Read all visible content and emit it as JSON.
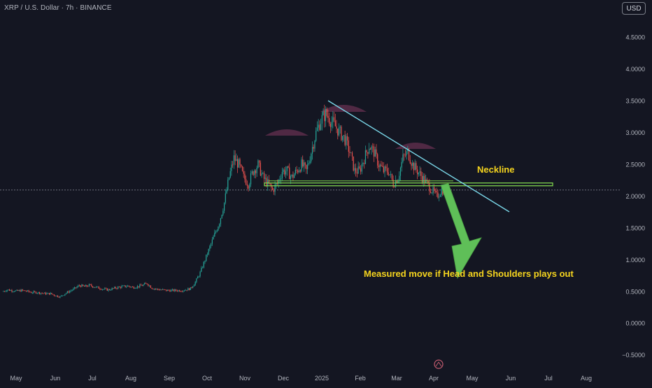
{
  "header": {
    "symbol_title": "XRP / U.S. Dollar · 7h · BINANCE",
    "currency_button": "USD"
  },
  "colors": {
    "background": "#141622",
    "up_candle": "#26a69a",
    "down_candle": "#ef5350",
    "axis_text": "#b2b5be",
    "neckline": "#7fd34e",
    "trendline": "#7ad7e8",
    "shoulder_arcs": "#5a2d4a",
    "measured_move_arrow": "#5fbf58",
    "annotation_text": "#f5d41e"
  },
  "chart_data": {
    "type": "line",
    "style": "candlestick",
    "x_ticks": [
      "May",
      "Jun",
      "Jul",
      "Aug",
      "Sep",
      "Oct",
      "Nov",
      "Dec",
      "2025",
      "Feb",
      "Mar",
      "Apr",
      "May",
      "Jun",
      "Jul",
      "Aug"
    ],
    "y_ticks": [
      "4.5000",
      "4.0000",
      "3.5000",
      "3.0000",
      "2.5000",
      "2.0000",
      "1.5000",
      "1.0000",
      "0.5000",
      "0.0000",
      "−0.5000"
    ],
    "ylim": [
      -0.63,
      4.98
    ],
    "x_start": "2024-05",
    "series": [
      {
        "values": [
          0.5,
          0.53,
          0.52,
          0.51,
          0.52,
          0.51,
          0.49,
          0.49,
          0.48,
          0.47,
          0.47,
          0.44,
          0.42,
          0.47,
          0.51,
          0.55,
          0.6,
          0.58,
          0.6,
          0.58,
          0.56,
          0.54,
          0.53,
          0.55,
          0.57,
          0.58,
          0.59,
          0.57,
          0.58,
          0.6,
          0.63,
          0.56,
          0.54,
          0.53,
          0.52,
          0.52,
          0.52,
          0.52,
          0.53,
          0.55,
          0.65,
          0.8,
          1.0,
          1.2,
          1.4,
          1.6,
          1.9,
          2.3,
          2.6,
          2.5,
          2.3,
          2.2,
          2.4,
          2.5,
          2.3,
          2.2,
          2.1,
          2.2,
          2.4,
          2.4,
          2.3,
          2.4,
          2.5,
          2.4,
          2.7,
          3.0,
          3.2,
          3.3,
          3.2,
          3.1,
          3.0,
          2.9,
          2.7,
          2.4,
          2.4,
          2.6,
          2.8,
          2.7,
          2.5,
          2.4,
          2.4,
          2.2,
          2.3,
          2.6,
          2.7,
          2.5,
          2.4,
          2.3,
          2.2,
          2.1,
          2.0,
          2.1
        ]
      }
    ],
    "annotations": {
      "neckline_label": "Neckline",
      "neckline_price": 2.2,
      "projection_label": "Measured move if Head and Shoulders plays out",
      "projection_target": 1.0
    },
    "grid": false,
    "legend": "none"
  }
}
